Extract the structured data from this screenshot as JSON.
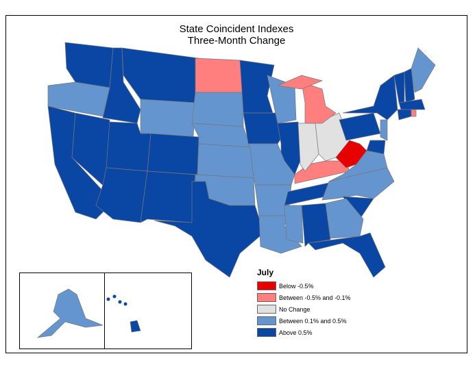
{
  "title": {
    "line1": "State Coincident Indexes",
    "line2": "Three-Month Change"
  },
  "legend": {
    "title": "July",
    "items": [
      {
        "key": "below",
        "label": "Below -0.5%",
        "color": "#e60000"
      },
      {
        "key": "neg",
        "label": "Between -0.5% and -0.1%",
        "color": "#ff7f7f"
      },
      {
        "key": "none",
        "label": "No Change",
        "color": "#e1e1e1"
      },
      {
        "key": "pos",
        "label": "Between 0.1% and 0.5%",
        "color": "#6495cf"
      },
      {
        "key": "above",
        "label": "Above 0.5%",
        "color": "#0a47a5"
      }
    ]
  },
  "states": {
    "WA": "above",
    "OR": "pos",
    "CA": "above",
    "NV": "above",
    "ID": "above",
    "MT": "above",
    "WY": "pos",
    "UT": "above",
    "AZ": "above",
    "CO": "above",
    "NM": "above",
    "ND": "neg",
    "SD": "pos",
    "NE": "pos",
    "KS": "pos",
    "OK": "pos",
    "TX": "above",
    "MN": "above",
    "IA": "above",
    "WI": "pos",
    "IL": "above",
    "MO": "pos",
    "AR": "pos",
    "LA": "pos",
    "MS": "pos",
    "AL": "above",
    "TN": "above",
    "KY": "neg",
    "IN": "none",
    "OH": "none",
    "MI": "neg",
    "WV": "below",
    "PA": "above",
    "NY": "above",
    "VT": "above",
    "NH": "above",
    "ME": "pos",
    "MA": "above",
    "CT": "above",
    "RI": "neg",
    "NJ": "pos",
    "MD": "above",
    "VA": "pos",
    "NC": "pos",
    "SC": "above",
    "GA": "pos",
    "FL": "above",
    "AK": "pos",
    "HI": "above"
  }
}
